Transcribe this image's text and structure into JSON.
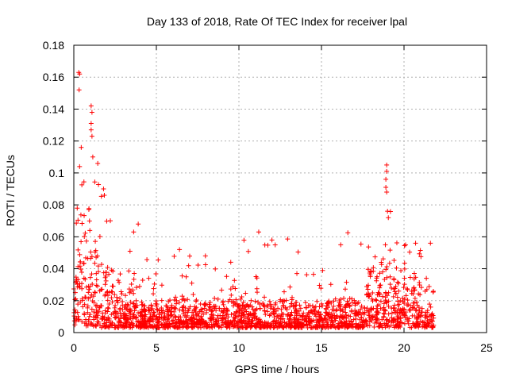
{
  "chart_data": {
    "type": "scatter",
    "title": "Day 133 of 2018, Rate Of TEC Index for receiver lpal",
    "xlabel": "GPS time / hours",
    "ylabel": "ROTI / TECUs",
    "xlim": [
      0,
      25
    ],
    "ylim": [
      0,
      0.18
    ],
    "x_ticks": [
      "0",
      "5",
      "10",
      "15",
      "20",
      "25"
    ],
    "y_ticks": [
      "0",
      "0.02",
      "0.04",
      "0.06",
      "0.08",
      "0.1",
      "0.12",
      "0.14",
      "0.16",
      "0.18"
    ],
    "grid": true,
    "marker": "+",
    "color": "#ff0000",
    "data_segments": [
      {
        "x_range": [
          0.0,
          0.25
        ],
        "y_base": [
          0.004,
          0.035
        ],
        "y_peak": 0.08
      },
      {
        "x_range": [
          0.25,
          0.55
        ],
        "y_base": [
          0.004,
          0.07
        ],
        "y_peak": 0.115
      },
      {
        "x_range": [
          0.55,
          1.0
        ],
        "y_base": [
          0.004,
          0.07
        ],
        "y_peak": 0.105
      },
      {
        "x_range": [
          1.0,
          1.6
        ],
        "y_base": [
          0.004,
          0.06
        ],
        "y_peak": 0.1
      },
      {
        "x_range": [
          1.6,
          2.4
        ],
        "y_base": [
          0.003,
          0.04
        ],
        "y_peak": 0.09
      },
      {
        "x_range": [
          2.4,
          3.3
        ],
        "y_base": [
          0.003,
          0.025
        ],
        "y_peak": 0.045
      },
      {
        "x_range": [
          3.3,
          4.0
        ],
        "y_base": [
          0.003,
          0.04
        ],
        "y_peak": 0.068
      },
      {
        "x_range": [
          4.0,
          9.5
        ],
        "y_base": [
          0.003,
          0.02
        ],
        "y_peak": 0.052
      },
      {
        "x_range": [
          9.5,
          10.0
        ],
        "y_base": [
          0.003,
          0.03
        ],
        "y_peak": 0.047
      },
      {
        "x_range": [
          10.0,
          17.7
        ],
        "y_base": [
          0.003,
          0.02
        ],
        "y_peak": 0.063
      },
      {
        "x_range": [
          17.7,
          18.7
        ],
        "y_base": [
          0.003,
          0.04
        ],
        "y_peak": 0.058
      },
      {
        "x_range": [
          18.7,
          19.2
        ],
        "y_base": [
          0.003,
          0.05
        ],
        "y_peak": 0.076
      },
      {
        "x_range": [
          19.2,
          20.5
        ],
        "y_base": [
          0.003,
          0.035
        ],
        "y_peak": 0.06
      },
      {
        "x_range": [
          20.5,
          21.8
        ],
        "y_base": [
          0.003,
          0.03
        ],
        "y_peak": 0.056
      }
    ],
    "notable_points": [
      {
        "x": 0.3,
        "y": 0.163
      },
      {
        "x": 0.35,
        "y": 0.162
      },
      {
        "x": 0.32,
        "y": 0.152
      },
      {
        "x": 1.05,
        "y": 0.142
      },
      {
        "x": 1.1,
        "y": 0.138
      },
      {
        "x": 1.05,
        "y": 0.131
      },
      {
        "x": 1.05,
        "y": 0.127
      },
      {
        "x": 1.1,
        "y": 0.123
      },
      {
        "x": 0.45,
        "y": 0.116
      },
      {
        "x": 1.15,
        "y": 0.11
      },
      {
        "x": 1.45,
        "y": 0.106
      },
      {
        "x": 0.35,
        "y": 0.104
      },
      {
        "x": 1.8,
        "y": 0.09
      },
      {
        "x": 1.85,
        "y": 0.086
      },
      {
        "x": 18.95,
        "y": 0.105
      },
      {
        "x": 18.95,
        "y": 0.101
      },
      {
        "x": 18.9,
        "y": 0.096
      },
      {
        "x": 18.9,
        "y": 0.091
      },
      {
        "x": 18.95,
        "y": 0.088
      },
      {
        "x": 19.0,
        "y": 0.076
      },
      {
        "x": 19.05,
        "y": 0.072
      },
      {
        "x": 3.9,
        "y": 0.068
      },
      {
        "x": 11.2,
        "y": 0.063
      },
      {
        "x": 12.0,
        "y": 0.058
      },
      {
        "x": 6.4,
        "y": 0.052
      },
      {
        "x": 21.6,
        "y": 0.056
      },
      {
        "x": 20.7,
        "y": 0.056
      }
    ]
  }
}
